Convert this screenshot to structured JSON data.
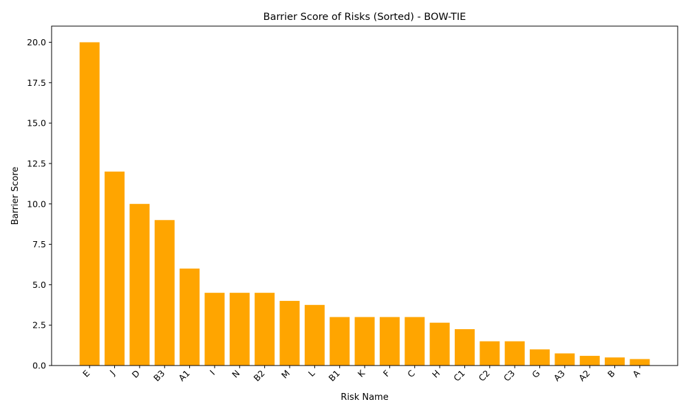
{
  "chart_data": {
    "type": "bar",
    "title": "Barrier Score of Risks (Sorted) - BOW-TIE",
    "xlabel": "Risk Name",
    "ylabel": "Barrier Score",
    "categories": [
      "E",
      "J",
      "D",
      "B3",
      "A1",
      "I",
      "N",
      "B2",
      "M",
      "L",
      "B1",
      "K",
      "F",
      "C",
      "H",
      "C1",
      "C2",
      "C3",
      "G",
      "A3",
      "A2",
      "B",
      "A"
    ],
    "values": [
      20,
      12,
      10,
      9,
      6,
      4.5,
      4.5,
      4.5,
      4,
      3.75,
      3,
      3,
      3,
      3,
      2.65,
      2.25,
      1.5,
      1.5,
      1,
      0.75,
      0.6,
      0.5,
      0.4
    ],
    "ylim": [
      0,
      21
    ],
    "yticks": [
      "0.0",
      "2.5",
      "5.0",
      "7.5",
      "10.0",
      "12.5",
      "15.0",
      "17.5",
      "20.0"
    ],
    "bar_color": "#FFA500",
    "grid": false,
    "legend": "none"
  }
}
